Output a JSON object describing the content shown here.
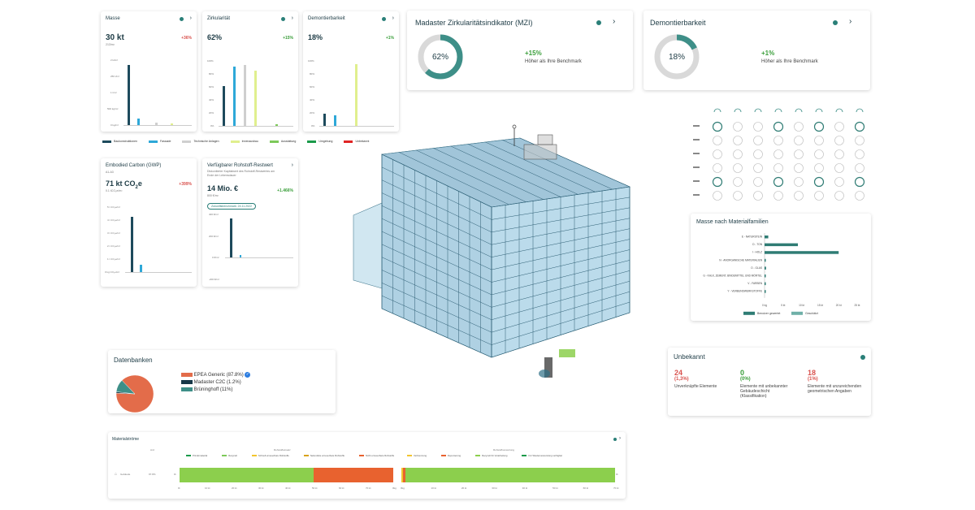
{
  "colors": {
    "bauk": "#1d4a5c",
    "fassade": "#2ea8d8",
    "techn": "#cfcfcf",
    "innen": "#e0ef8e",
    "ausst": "#7dc95a",
    "umgeb": "#1a9a4a",
    "unbekannt": "#e02424",
    "teal": "#3e8f88",
    "orange": "#e36c4a",
    "dark": "#173848"
  },
  "masse": {
    "title": "Masse",
    "value": "30 kt",
    "sub": "213/m²",
    "delta": "+36%",
    "ticks": [
      "2 kt/m²",
      "250 t/m²",
      "1 t/m²",
      "500 kg/m²",
      "0 kg/m²"
    ]
  },
  "zirk": {
    "title": "Zirkularität",
    "value": "62%",
    "delta": "+15%",
    "ticks": [
      "100%",
      "80%",
      "60%",
      "40%",
      "20%",
      "0%"
    ]
  },
  "demsmall": {
    "title": "Demontierbarkeit",
    "value": "18%",
    "delta": "+1%",
    "ticks": [
      "100%",
      "80%",
      "60%",
      "40%",
      "20%",
      "0%"
    ]
  },
  "legend": {
    "items": [
      "Baukonstruktionen",
      "Fassade",
      "Technische Anlagen",
      "Innenausbau",
      "Ausstattung",
      "Umgebung",
      "Unbekannt"
    ]
  },
  "gwp": {
    "title": "Embodied Carbon (GWP)",
    "sub": "A1-A3",
    "value": "71 kt CO",
    "value_sub": "2",
    "value_suffix": "e",
    "sub2": "0.1 tCO₂e/m²",
    "delta": "+399%",
    "ticks": [
      "5 t CO₂e/m²",
      "4 t CO₂e/m²",
      "3 t CO₂e/m²",
      "2 t CO₂e/m²",
      "1 t CO₂e/m²",
      "0 kg CO₂e/m²"
    ]
  },
  "rest": {
    "title": "Verfügbarer Rohstoff-Restwert",
    "desc": "Diskontierter Kapitalwert des Rohstoff-Restwertes am Ende der Lebensdauer",
    "value": "14 Mio. €",
    "sub": "800 €/m²",
    "delta": "+1.466%",
    "badge": "Zukunftsbenchmark: 24.11.2022",
    "ticks": [
      "400 €/m²",
      "200 €/m²",
      "0 €/m²",
      "-200 €/m²"
    ]
  },
  "mzi": {
    "title": "Madaster Zirkularitätsindikator (MZI)",
    "pct": "62%",
    "fraction": 0.62,
    "delta": "+15%",
    "caption": "Höher als Ihre Benchmark"
  },
  "dem": {
    "title": "Demontierbarkeit",
    "pct": "18%",
    "fraction": 0.18,
    "delta": "+1%",
    "caption": "Höher als Ihre Benchmark"
  },
  "mf": {
    "title": "Masse nach Materialfamilien",
    "rows": [
      {
        "label": "E - NATURSTEIN",
        "value": 1,
        "geschaetzt": 0
      },
      {
        "label": "D - TON",
        "value": 9,
        "geschaetzt": 0
      },
      {
        "label": "I - HOLZ",
        "value": 20,
        "geschaetzt": 0
      },
      {
        "label": "N - ANORGANISCHE MATERIALIEN",
        "value": 0.3,
        "geschaetzt": 0
      },
      {
        "label": "O - GLAS",
        "value": 0.4,
        "geschaetzt": 0
      },
      {
        "label": "G - KALK, ZEMENT, BINDEMITTEL UND MÖRTEL",
        "value": 0.2,
        "geschaetzt": 0
      },
      {
        "label": "V - FARBEN",
        "value": 0.1,
        "geschaetzt": 0
      },
      {
        "label": "Y - VERBUNDWERKSTOFFE",
        "value": 0.1,
        "geschaetzt": 0
      }
    ],
    "x_ticks": [
      "0 kg",
      "5 kt",
      "10 kt",
      "15 kt",
      "20 kt",
      "25 kt"
    ],
    "xmax": 25,
    "legend": [
      "Benutzer gewertet",
      "Geschätzt"
    ]
  },
  "db": {
    "title": "Datenbanken",
    "slices": [
      {
        "label": "EPEA Generic (87.8%)",
        "value": 87.8,
        "color": "#e36c4a"
      },
      {
        "label": "Madaster C2C (1.2%)",
        "value": 1.2,
        "color": "#173848"
      },
      {
        "label": "Brüninghoff (11%)",
        "value": 11,
        "color": "#3e8f88"
      }
    ]
  },
  "unb": {
    "title": "Unbekannt",
    "cols": [
      {
        "value": "24",
        "pct": "(1,3%)",
        "text": "Unverknüpfte Elemente",
        "tone": "red"
      },
      {
        "value": "0",
        "pct": "(0%)",
        "text": "Elemente mit unbekannter Gebäudeschicht (Klassifikation)",
        "tone": "green"
      },
      {
        "value": "18",
        "pct": "(1%)",
        "text": "Elemente mit unzureichenden geometrischen Angaben",
        "tone": "red"
      }
    ]
  },
  "ms": {
    "title": "Materialströme",
    "col_header": "Anz",
    "group1": "Rohstoffeinsatz",
    "group2": "Rohstoffverwertung",
    "legend1": [
      "Primärmaterial",
      "Recycelt",
      "Schnell erneuerbare Rohstoffe",
      "Sekundäre erneuerbare Rohstoffe",
      "Nicht erneuerbare Rohstoffe"
    ],
    "legend2": [
      "Verbrennung",
      "Deponierung",
      "Recycelt für Verarbeitung",
      "Für Wiederverwendung verfügbar"
    ],
    "row_label": "Gebäude",
    "row_value": "97.8%",
    "left_mark": "0t",
    "right_mark": "0t",
    "ticks_left": [
      "0t",
      "10 kt",
      "20 kt",
      "30 kt",
      "40 kt",
      "50 kt",
      "60 kt",
      "70 kt",
      "0kg"
    ],
    "ticks_right": [
      "0kg",
      "10 kt",
      "20 kt",
      "30 kt",
      "40 kt",
      "50 kt",
      "60 kt",
      "70 kt"
    ]
  }
}
